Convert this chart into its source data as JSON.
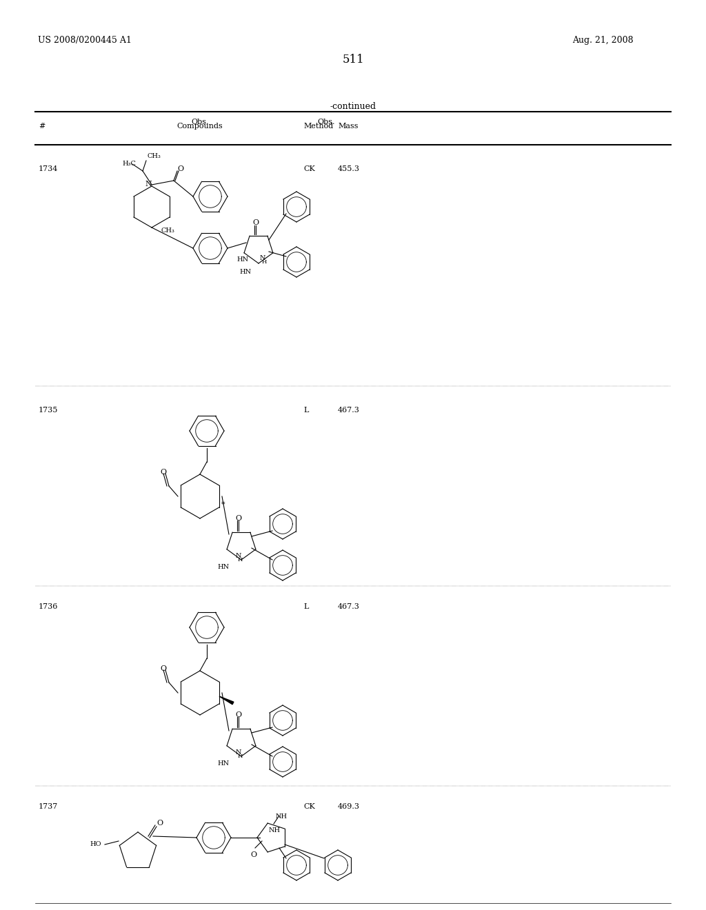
{
  "page_number": "511",
  "patent_number": "US 2008/0200445 A1",
  "patent_date": "Aug. 21, 2008",
  "continued_label": "-continued",
  "table_headers": [
    "#",
    "Compounds",
    "Obs.\nMethod",
    "Mass"
  ],
  "compounds": [
    {
      "id": "1734",
      "method": "CK",
      "mass": "455.3"
    },
    {
      "id": "1735",
      "method": "L",
      "mass": "467.3"
    },
    {
      "id": "1736",
      "method": "L",
      "mass": "467.3"
    },
    {
      "id": "1737",
      "method": "CK",
      "mass": "469.3"
    }
  ],
  "bg_color": "#ffffff",
  "text_color": "#000000",
  "font_size_body": 9,
  "font_size_page_num": 14,
  "font_size_header": 10
}
